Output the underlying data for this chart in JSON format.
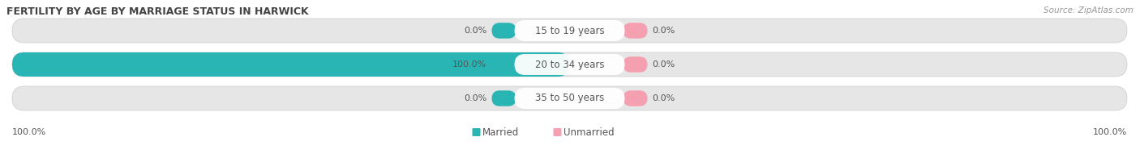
{
  "title": "FERTILITY BY AGE BY MARRIAGE STATUS IN HARWICK",
  "source_text": "Source: ZipAtlas.com",
  "rows": [
    {
      "label": "15 to 19 years",
      "married": 0.0,
      "unmarried": 0.0
    },
    {
      "label": "20 to 34 years",
      "married": 100.0,
      "unmarried": 0.0
    },
    {
      "label": "35 to 50 years",
      "married": 0.0,
      "unmarried": 0.0
    }
  ],
  "married_color": "#2ab5b5",
  "unmarried_color": "#f4a0b0",
  "bar_bg_color": "#e6e6e6",
  "bar_bg_color2": "#efefef",
  "title_fontsize": 9,
  "label_fontsize": 8.5,
  "value_fontsize": 8,
  "source_fontsize": 7.5,
  "legend_married": "Married",
  "legend_unmarried": "Unmarried",
  "bottom_left_label": "100.0%",
  "bottom_right_label": "100.0%"
}
